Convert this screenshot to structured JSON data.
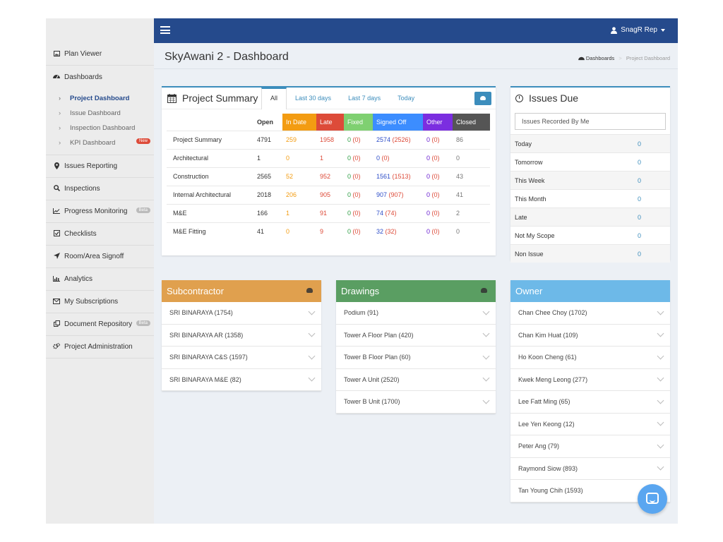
{
  "header": {
    "user_label": "SnagR Rep"
  },
  "sidebar": {
    "items_top": [
      {
        "label": "Plan Viewer",
        "icon": "image-icon"
      }
    ],
    "dashboards": {
      "label": "Dashboards",
      "icon": "dashboard-icon",
      "children": [
        {
          "label": "Project Dashboard",
          "active": true
        },
        {
          "label": "Issue Dashboard"
        },
        {
          "label": "Inspection Dashboard"
        },
        {
          "label": "KPI Dashboard",
          "badge": "New"
        }
      ]
    },
    "items": [
      {
        "label": "Issues Reporting",
        "icon": "map-marker-icon"
      },
      {
        "label": "Inspections",
        "icon": "search-icon"
      },
      {
        "label": "Progress Monitoring",
        "icon": "line-chart-icon",
        "badge": "Beta"
      },
      {
        "label": "Checklists",
        "icon": "checkbox-icon"
      },
      {
        "label": "Room/Area Signoff",
        "icon": "paper-plane-icon"
      },
      {
        "label": "Analytics",
        "icon": "bar-chart-icon"
      },
      {
        "label": "My Subscriptions",
        "icon": "envelope-icon"
      },
      {
        "label": "Document Repository",
        "icon": "copy-icon",
        "badge": "Beta"
      },
      {
        "label": "Project Administration",
        "icon": "cogs-icon"
      }
    ]
  },
  "page": {
    "title": "SkyAwani 2 - Dashboard",
    "breadcrumb": [
      "Dashboards",
      "Project Dashboard"
    ]
  },
  "summary": {
    "title": "Project Summary",
    "tabs": [
      "All",
      "Last 30 days",
      "Last 7 days",
      "Today"
    ],
    "columns": [
      "Open",
      "In Date",
      "Late",
      "Fixed",
      "Signed Off",
      "Other",
      "Closed"
    ],
    "rows": [
      {
        "name": "Project Summary",
        "open": "4791",
        "indate": "259",
        "late": "1958",
        "fixed": "0",
        "fixed_sub": "(0)",
        "signed": "2574",
        "signed_sub": "(2526)",
        "other": "0",
        "other_sub": "(0)",
        "closed": "86"
      },
      {
        "name": "Architectural",
        "open": "1",
        "indate": "0",
        "late": "1",
        "fixed": "0",
        "fixed_sub": "(0)",
        "signed": "0",
        "signed_sub": "(0)",
        "other": "0",
        "other_sub": "(0)",
        "closed": "0"
      },
      {
        "name": "Construction",
        "open": "2565",
        "indate": "52",
        "late": "952",
        "fixed": "0",
        "fixed_sub": "(0)",
        "signed": "1561",
        "signed_sub": "(1513)",
        "other": "0",
        "other_sub": "(0)",
        "closed": "43"
      },
      {
        "name": "Internal Architectural",
        "open": "2018",
        "indate": "206",
        "late": "905",
        "fixed": "0",
        "fixed_sub": "(0)",
        "signed": "907",
        "signed_sub": "(907)",
        "other": "0",
        "other_sub": "(0)",
        "closed": "41"
      },
      {
        "name": "M&E",
        "open": "166",
        "indate": "1",
        "late": "91",
        "fixed": "0",
        "fixed_sub": "(0)",
        "signed": "74",
        "signed_sub": "(74)",
        "other": "0",
        "other_sub": "(0)",
        "closed": "2"
      },
      {
        "name": "M&E Fitting",
        "open": "41",
        "indate": "0",
        "late": "9",
        "fixed": "0",
        "fixed_sub": "(0)",
        "signed": "32",
        "signed_sub": "(32)",
        "other": "0",
        "other_sub": "(0)",
        "closed": "0"
      }
    ]
  },
  "issues_due": {
    "title": "Issues Due",
    "filter": "Issues Recorded By Me",
    "rows": [
      {
        "label": "Today",
        "value": "0"
      },
      {
        "label": "Tomorrow",
        "value": "0"
      },
      {
        "label": "This Week",
        "value": "0"
      },
      {
        "label": "This Month",
        "value": "0"
      },
      {
        "label": "Late",
        "value": "0"
      },
      {
        "label": "Not My Scope",
        "value": "0"
      },
      {
        "label": "Non Issue",
        "value": "0"
      }
    ]
  },
  "subcontractor": {
    "title": "Subcontractor",
    "items": [
      "SRI BINARAYA (1754)",
      "SRI BINARAYA AR (1358)",
      "SRI BINARAYA C&S (1597)",
      "SRI BINARAYA M&E (82)"
    ]
  },
  "drawings": {
    "title": "Drawings",
    "items": [
      "Podium (91)",
      "Tower A Floor Plan (420)",
      "Tower B Floor Plan (60)",
      "Tower A Unit (2520)",
      "Tower B Unit (1700)"
    ]
  },
  "owner": {
    "title": "Owner",
    "items": [
      "Chan Chee Choy (1702)",
      "Chan Kim Huat (109)",
      "Ho Koon Cheng (61)",
      "Kwek Meng Leong (277)",
      "Lee Fatt Ming (65)",
      "Lee Yen Keong (12)",
      "Peter Ang (79)",
      "Raymond Siow (893)",
      "Tan Young Chih (1593)"
    ]
  },
  "colors": {
    "navbar": "#254a8c",
    "in_date": "#f39c12",
    "late": "#dd4b39",
    "fixed": "#7fd071",
    "signed_off": "#3c8dff",
    "other": "#7b2ee0",
    "closed": "#555555",
    "subcontractor": "#e0a04e",
    "drawings": "#5a9e62",
    "owner": "#6db9e8"
  }
}
